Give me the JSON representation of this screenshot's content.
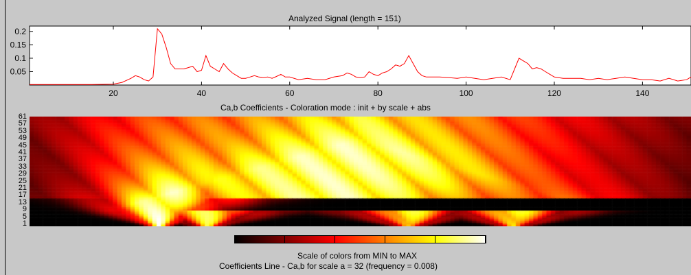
{
  "chart_data": [
    {
      "type": "line",
      "title": "Analyzed Signal  (length = 151)",
      "xlim": [
        1,
        151
      ],
      "ylim": [
        0,
        0.22
      ],
      "xticks": [
        20,
        40,
        60,
        80,
        100,
        120,
        140
      ],
      "yticks": [
        0.05,
        0.1,
        0.15,
        0.2
      ],
      "ytick_labels": [
        "0.05",
        "0.1",
        "0.15",
        "0.2"
      ],
      "grid": false,
      "line_color": "#ff0000",
      "series": [
        {
          "x": [
            1,
            5,
            10,
            15,
            20,
            22,
            24,
            25,
            26,
            27,
            28,
            29,
            30,
            31,
            32,
            33,
            34,
            35,
            36,
            37,
            38,
            39,
            40,
            41,
            42,
            43,
            44,
            45,
            46,
            47,
            48,
            49,
            50,
            51,
            52,
            53,
            54,
            55,
            56,
            57,
            58,
            59,
            60,
            62,
            64,
            66,
            68,
            70,
            72,
            73,
            74,
            75,
            76,
            77,
            78,
            79,
            80,
            81,
            82,
            83,
            84,
            85,
            86,
            87,
            88,
            89,
            90,
            91,
            92,
            94,
            96,
            98,
            100,
            102,
            104,
            106,
            108,
            110,
            111,
            112,
            113,
            114,
            115,
            116,
            117,
            118,
            119,
            120,
            122,
            124,
            126,
            128,
            130,
            132,
            134,
            136,
            138,
            140,
            142,
            144,
            146,
            148,
            150,
            151
          ],
          "y": [
            0.002,
            0.002,
            0.002,
            0.002,
            0.003,
            0.01,
            0.025,
            0.035,
            0.03,
            0.02,
            0.015,
            0.03,
            0.21,
            0.19,
            0.14,
            0.08,
            0.06,
            0.06,
            0.06,
            0.065,
            0.07,
            0.05,
            0.055,
            0.11,
            0.07,
            0.06,
            0.05,
            0.08,
            0.06,
            0.045,
            0.035,
            0.025,
            0.025,
            0.03,
            0.035,
            0.03,
            0.028,
            0.03,
            0.025,
            0.032,
            0.04,
            0.03,
            0.03,
            0.02,
            0.025,
            0.02,
            0.02,
            0.03,
            0.035,
            0.045,
            0.04,
            0.03,
            0.028,
            0.03,
            0.05,
            0.04,
            0.035,
            0.045,
            0.05,
            0.06,
            0.075,
            0.07,
            0.08,
            0.11,
            0.08,
            0.05,
            0.035,
            0.03,
            0.03,
            0.03,
            0.028,
            0.025,
            0.03,
            0.025,
            0.02,
            0.025,
            0.03,
            0.02,
            0.06,
            0.1,
            0.09,
            0.08,
            0.06,
            0.065,
            0.06,
            0.05,
            0.04,
            0.03,
            0.025,
            0.025,
            0.025,
            0.02,
            0.025,
            0.02,
            0.025,
            0.03,
            0.025,
            0.02,
            0.02,
            0.015,
            0.025,
            0.015,
            0.02,
            0.03
          ]
        }
      ]
    },
    {
      "type": "heatmap",
      "title": "Ca,b Coefficients  - Coloration mode : init + by scale + abs",
      "xlim": [
        1,
        151
      ],
      "ylabel_ticks": [
        "61",
        "57",
        "53",
        "49",
        "45",
        "41",
        "37",
        "33",
        "29",
        "25",
        "21",
        "17",
        "13",
        "9",
        "5",
        "1"
      ],
      "colormap": "hot",
      "coloration_mode": "init + by scale + abs",
      "feature_locations": [
        30,
        41,
        87,
        111
      ],
      "colorbar": {
        "label": "Scale of colors from MIN to MAX",
        "colors": [
          "#000000",
          "#800000",
          "#ff0000",
          "#ff8000",
          "#ffff00",
          "#ffffff"
        ]
      }
    }
  ],
  "footer": {
    "coefficients_line": "Coefficients Line - Ca,b   for scale a = 32  (frequency =    0.008)"
  }
}
